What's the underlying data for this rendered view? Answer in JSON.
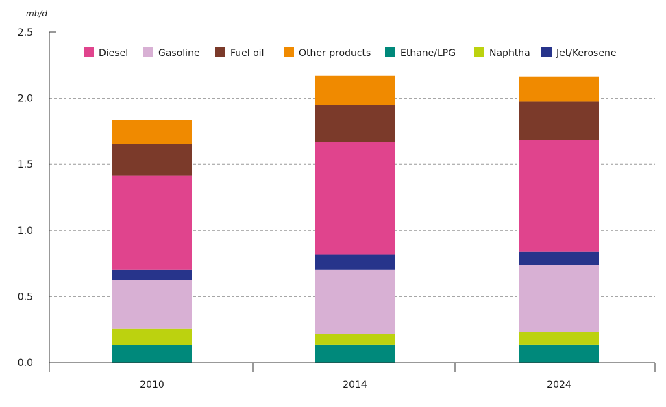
{
  "chart_data": {
    "type": "bar",
    "stacked": true,
    "unit": "mb/d",
    "categories": [
      "2010",
      "2014",
      "2024"
    ],
    "ylim": [
      0,
      2.5
    ],
    "yticks": [
      "0.0",
      "0.5",
      "1.0",
      "1.5",
      "2.0",
      "2.5"
    ],
    "grid": true,
    "legend_position": "top",
    "series": [
      {
        "name": "Ethane/LPG",
        "color": "#00897b",
        "values": [
          0.13,
          0.135,
          0.135
        ]
      },
      {
        "name": "Naphtha",
        "color": "#bcd20f",
        "values": [
          0.125,
          0.08,
          0.095
        ]
      },
      {
        "name": "Gasoline",
        "color": "#d8b0d4",
        "values": [
          0.37,
          0.49,
          0.51
        ]
      },
      {
        "name": "Jet/Kerosene",
        "color": "#27348b",
        "values": [
          0.08,
          0.11,
          0.1
        ]
      },
      {
        "name": "Diesel",
        "color": "#e0448d",
        "values": [
          0.71,
          0.855,
          0.845
        ]
      },
      {
        "name": "Fuel oil",
        "color": "#7b3a2a",
        "values": [
          0.24,
          0.28,
          0.29
        ]
      },
      {
        "name": "Other products",
        "color": "#f08a00",
        "values": [
          0.18,
          0.22,
          0.19
        ]
      }
    ],
    "legend_order": [
      "Diesel",
      "Gasoline",
      "Fuel oil",
      "Other products",
      "Ethane/LPG",
      "Naphtha",
      "Jet/Kerosene"
    ]
  }
}
